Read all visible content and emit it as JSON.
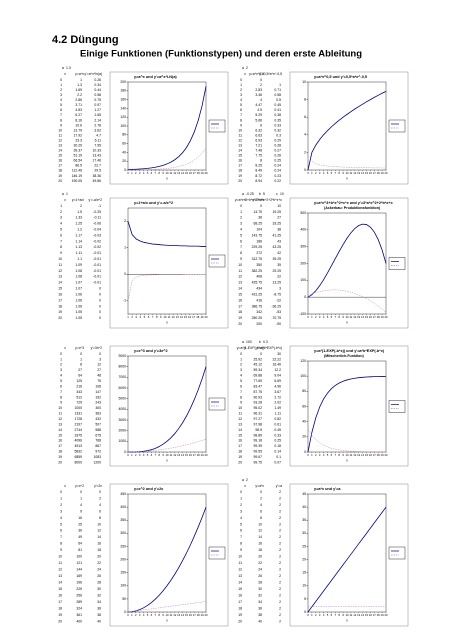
{
  "header": {
    "title": "4.2 Düngung",
    "subtitle": "Einige Funktionen (Funktionstypen) und deren erste Ableitung"
  },
  "blocks": [
    {
      "params": [
        {
          "name": "a",
          "value": 1.3
        }
      ],
      "columns": [
        "x",
        "y=a^x",
        "y'=a^x*ln(a)"
      ],
      "chart": {
        "type": "line",
        "title": "y=a^x und y'=a^x*LN(a)",
        "xlabel": "x",
        "xlim": [
          0,
          20
        ],
        "ylim": [
          0,
          200
        ],
        "yticks": [
          0,
          20,
          40,
          60,
          80,
          100,
          120,
          140,
          160,
          180,
          200
        ],
        "x": [
          0,
          1,
          2,
          3,
          4,
          5,
          6,
          7,
          8,
          9,
          10,
          11,
          12,
          13,
          14,
          15,
          16,
          17,
          18,
          19,
          20
        ],
        "series": [
          {
            "color": "#000080",
            "values": [
              1,
              1.3,
              1.69,
              2.2,
              2.86,
              3.71,
              4.83,
              6.27,
              8.16,
              10.6,
              13.79,
              17.92,
              23.3,
              30.29,
              39.37,
              51.19,
              66.54,
              86.5,
              112.46,
              146.19,
              190.05
            ]
          },
          {
            "color": "#c080c0",
            "line_style": "dashed",
            "values": [
              0.26,
              0.34,
              0.44,
              0.58,
              0.75,
              0.97,
              1.27,
              1.65,
              2.14,
              2.78,
              3.62,
              4.7,
              6.11,
              7.95,
              10.33,
              13.43,
              17.46,
              22.7,
              29.5,
              38.36,
              49.86
            ]
          }
        ]
      }
    },
    {
      "params": [
        {
          "name": "a",
          "value": 2
        }
      ],
      "columns": [
        "x",
        "y=a*x^0,5",
        "y'=0,5*a*x^-0,5"
      ],
      "chart": {
        "type": "line",
        "title": "y=a*x^0,5 und y'=0,5*a*x^-0,5",
        "xlabel": "x",
        "xlim": [
          0,
          20
        ],
        "ylim": [
          0,
          10
        ],
        "yticks": [
          0,
          2,
          4,
          6,
          8,
          10
        ],
        "x": [
          0,
          1,
          2,
          3,
          4,
          5,
          6,
          7,
          8,
          9,
          10,
          11,
          12,
          13,
          14,
          15,
          16,
          17,
          18,
          19,
          20
        ],
        "series": [
          {
            "color": "#000080",
            "values": [
              0,
              2,
              2.83,
              3.46,
              4,
              4.47,
              4.9,
              5.29,
              5.66,
              6,
              6.32,
              6.63,
              6.93,
              7.21,
              7.48,
              7.75,
              8,
              8.25,
              8.49,
              8.72,
              8.94
            ]
          },
          {
            "color": "#c080c0",
            "line_style": "dashed",
            "values": [
              null,
              1,
              0.71,
              0.58,
              0.5,
              0.45,
              0.41,
              0.38,
              0.35,
              0.33,
              0.32,
              0.3,
              0.29,
              0.28,
              0.27,
              0.26,
              0.25,
              0.24,
              0.24,
              0.23,
              0.22
            ]
          }
        ]
      }
    },
    {
      "params": [
        {
          "name": "a",
          "value": 1
        }
      ],
      "columns": [
        "x",
        "y=1+a/x",
        "y'=-a/x^2"
      ],
      "chart": {
        "type": "line",
        "title": "y=1+a/x und y'=-a/x^2",
        "xlabel": "x",
        "xlim": [
          1,
          20
        ],
        "ylim": [
          -1.5,
          2.5
        ],
        "yticks": [
          -1,
          0,
          1,
          2
        ],
        "x": [
          1,
          2,
          3,
          4,
          5,
          6,
          7,
          8,
          9,
          10,
          11,
          12,
          13,
          14,
          15,
          16,
          17,
          18,
          19,
          20
        ],
        "series": [
          {
            "color": "#000080",
            "values": [
              2,
              1.5,
              1.33,
              1.25,
              1.2,
              1.17,
              1.14,
              1.13,
              1.11,
              1.1,
              1.09,
              1.08,
              1.08,
              1.07,
              1.07,
              1.06,
              1.06,
              1.06,
              1.05,
              1.05
            ]
          },
          {
            "color": "#c080c0",
            "line_style": "dashed",
            "values": [
              -1,
              -0.25,
              -0.11,
              -0.06,
              -0.04,
              -0.03,
              -0.02,
              -0.02,
              -0.01,
              -0.01,
              -0.01,
              -0.01,
              -0.01,
              -0.01,
              0,
              0,
              0,
              0,
              0,
              0
            ]
          }
        ]
      }
    },
    {
      "params": [
        {
          "name": "a",
          "value": -0.25
        },
        {
          "name": "b",
          "value": 5
        },
        {
          "name": "c",
          "value": 10
        }
      ],
      "columns": [
        "x",
        "y=a*x^3+b*x^2+c*x",
        "y'=3*a*x^2+2*b*x+c"
      ],
      "chart": {
        "type": "line",
        "title": "y=a*x^3+b*x^2+c*x und y'=3*a*x^2+2*b*x+c",
        "subtitle": "(Ackerbau: Produktionsfunktion)",
        "xlabel": "x",
        "xlim": [
          0,
          20
        ],
        "ylim": [
          -100,
          500
        ],
        "yticks": [
          -100,
          0,
          100,
          200,
          300,
          400,
          500
        ],
        "x": [
          0,
          1,
          2,
          3,
          4,
          5,
          6,
          7,
          8,
          9,
          10,
          11,
          12,
          13,
          14,
          15,
          16,
          17,
          18,
          19,
          20
        ],
        "series": [
          {
            "color": "#000080",
            "values": [
              0,
              14.75,
              38,
              68.25,
              104,
              143.75,
              186,
              229.25,
              272,
              312.75,
              350,
              382.25,
              408,
              425.75,
              434,
              431.25,
              416,
              386.75,
              342,
              280.25,
              200
            ]
          },
          {
            "color": "#c080c0",
            "line_style": "dashed",
            "values": [
              10,
              19.25,
              27,
              33.25,
              38,
              41.25,
              43,
              43.25,
              42,
              39.25,
              35,
              29.25,
              22,
              13.25,
              3,
              -8.75,
              -22,
              -36.25,
              -53,
              -70.75,
              -90
            ]
          }
        ]
      }
    },
    {
      "params": [],
      "columns": [
        "x",
        "y=x^3",
        "y'=3x^2"
      ],
      "chart": {
        "type": "line",
        "title": "y=x^3 und y'=3x^2",
        "xlabel": "x",
        "xlim": [
          0,
          20
        ],
        "ylim": [
          0,
          9000
        ],
        "yticks": [
          0,
          1000,
          2000,
          3000,
          4000,
          5000,
          6000,
          7000,
          8000,
          9000
        ],
        "x": [
          0,
          1,
          2,
          3,
          4,
          5,
          6,
          7,
          8,
          9,
          10,
          11,
          12,
          13,
          14,
          15,
          16,
          17,
          18,
          19,
          20
        ],
        "series": [
          {
            "color": "#000080",
            "values": [
              0,
              1,
              8,
              27,
              64,
              125,
              216,
              343,
              512,
              729,
              1000,
              1331,
              1728,
              2197,
              2744,
              3375,
              4096,
              4913,
              5832,
              6859,
              8000
            ]
          },
          {
            "color": "#c080c0",
            "line_style": "dashed",
            "values": [
              0,
              3,
              12,
              27,
              48,
              75,
              108,
              147,
              192,
              243,
              300,
              363,
              432,
              507,
              588,
              675,
              768,
              867,
              972,
              1083,
              1200
            ]
          }
        ]
      }
    },
    {
      "params": [
        {
          "name": "a",
          "value": 100
        },
        {
          "name": "b",
          "value": 0.3
        }
      ],
      "columns": [
        "x",
        "y=a*(1-EXP(-b*x))",
        "y'=a*b*EXP(-b*x)"
      ],
      "chart": {
        "type": "line",
        "title": "y=a*(1-EXP(-b*x)) und y'=a*b*EXP(-b*x)",
        "subtitle": "(Mitscherlich-Funktion)",
        "xlabel": "x",
        "xlim": [
          0,
          20
        ],
        "ylim": [
          0,
          120
        ],
        "yticks": [
          0,
          20,
          40,
          60,
          80,
          100,
          120
        ],
        "x": [
          0,
          1,
          2,
          3,
          4,
          5,
          6,
          7,
          8,
          9,
          10,
          11,
          12,
          13,
          14,
          15,
          16,
          17,
          18,
          19,
          20
        ],
        "series": [
          {
            "color": "#000080",
            "values": [
              0,
              25.92,
              45.12,
              59.34,
              69.88,
              77.69,
              83.47,
              87.75,
              90.93,
              93.28,
              95.02,
              96.31,
              97.27,
              97.98,
              98.5,
              98.89,
              99.18,
              99.39,
              99.55,
              99.67,
              99.75
            ]
          },
          {
            "color": "#c080c0",
            "line_style": "dashed",
            "values": [
              30,
              22.22,
              16.46,
              12.2,
              9.04,
              6.69,
              4.96,
              3.67,
              2.72,
              2.02,
              1.49,
              1.11,
              0.82,
              0.61,
              0.45,
              0.33,
              0.25,
              0.18,
              0.14,
              0.1,
              0.07
            ]
          }
        ]
      }
    },
    {
      "params": [],
      "columns": [
        "x",
        "y=x^2",
        "y'=2x"
      ],
      "chart": {
        "type": "line",
        "title": "y=x^2 und y'=2x",
        "xlabel": "x",
        "xlim": [
          0,
          20
        ],
        "ylim": [
          0,
          450
        ],
        "yticks": [
          0,
          50,
          100,
          150,
          200,
          250,
          300,
          350,
          400,
          450
        ],
        "x": [
          0,
          1,
          2,
          3,
          4,
          5,
          6,
          7,
          8,
          9,
          10,
          11,
          12,
          13,
          14,
          15,
          16,
          17,
          18,
          19,
          20
        ],
        "series": [
          {
            "color": "#000080",
            "values": [
              0,
              1,
              4,
              9,
              16,
              25,
              36,
              49,
              64,
              81,
              100,
              121,
              144,
              169,
              196,
              225,
              256,
              289,
              324,
              361,
              400
            ]
          },
          {
            "color": "#c080c0",
            "line_style": "dashed",
            "values": [
              0,
              2,
              4,
              6,
              8,
              10,
              12,
              14,
              16,
              18,
              20,
              22,
              24,
              26,
              28,
              30,
              32,
              34,
              36,
              38,
              40
            ]
          }
        ]
      }
    },
    {
      "params": [
        {
          "name": "a",
          "value": 2
        }
      ],
      "columns": [
        "x",
        "y=a*x",
        "y'=a"
      ],
      "chart": {
        "type": "line",
        "title": "y=a*x und y'=a",
        "xlabel": "x",
        "xlim": [
          0,
          20
        ],
        "ylim": [
          0,
          45
        ],
        "yticks": [
          0,
          5,
          10,
          15,
          20,
          25,
          30,
          35,
          40,
          45
        ],
        "x": [
          0,
          1,
          2,
          3,
          4,
          5,
          6,
          7,
          8,
          9,
          10,
          11,
          12,
          13,
          14,
          15,
          16,
          17,
          18,
          19,
          20
        ],
        "series": [
          {
            "color": "#000080",
            "values": [
              0,
              2,
              4,
              6,
              8,
              10,
              12,
              14,
              16,
              18,
              20,
              22,
              24,
              26,
              28,
              30,
              32,
              34,
              36,
              38,
              40
            ]
          },
          {
            "color": "#c080c0",
            "line_style": "dashed",
            "values": [
              2,
              2,
              2,
              2,
              2,
              2,
              2,
              2,
              2,
              2,
              2,
              2,
              2,
              2,
              2,
              2,
              2,
              2,
              2,
              2,
              2
            ]
          }
        ]
      }
    }
  ]
}
